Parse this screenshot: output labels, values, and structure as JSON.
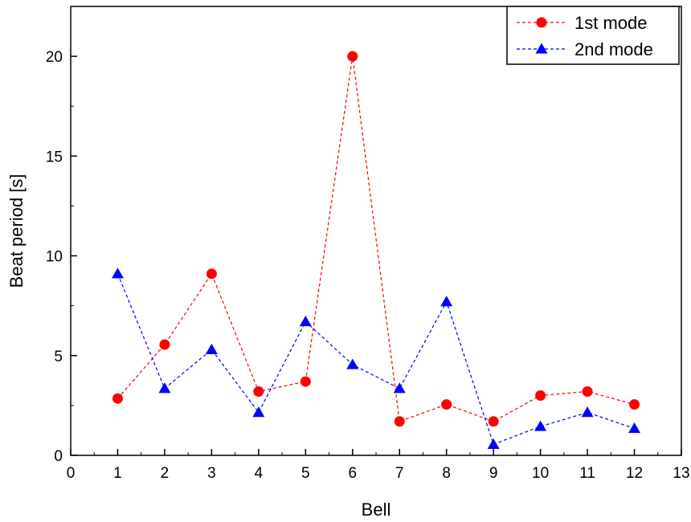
{
  "chart_data": {
    "type": "line",
    "xlabel": "Bell",
    "ylabel": "Beat period [s]",
    "xlim": [
      0,
      13
    ],
    "ylim": [
      0,
      22.5
    ],
    "x_ticks": [
      0,
      1,
      2,
      3,
      4,
      5,
      6,
      7,
      8,
      9,
      10,
      11,
      12,
      13
    ],
    "y_ticks": [
      0,
      5,
      10,
      15,
      20
    ],
    "grid": false,
    "legend_position": "top-right",
    "x": [
      1,
      2,
      3,
      4,
      5,
      6,
      7,
      8,
      9,
      10,
      11,
      12
    ],
    "series": [
      {
        "name": "1st mode",
        "marker": "circle",
        "line_style": "dashed",
        "color": "#ff0000",
        "values": [
          2.85,
          5.55,
          9.1,
          3.2,
          3.7,
          20.0,
          1.7,
          2.55,
          1.7,
          3.0,
          3.2,
          2.55
        ]
      },
      {
        "name": "2nd mode",
        "marker": "triangle",
        "line_style": "dashed",
        "color": "#0000ff",
        "values": [
          9.1,
          3.35,
          5.3,
          2.15,
          6.7,
          4.55,
          3.35,
          7.7,
          0.55,
          1.45,
          2.15,
          1.35
        ]
      }
    ]
  }
}
